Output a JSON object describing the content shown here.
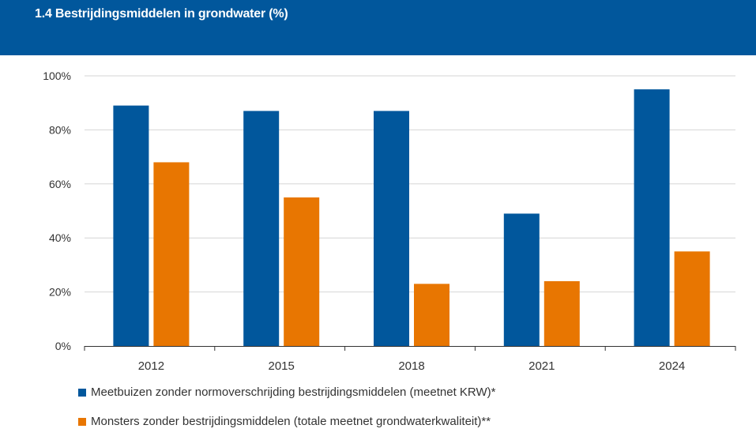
{
  "header": {
    "title": "1.4 Bestrijdingsmiddelen in grondwater (%)"
  },
  "colors": {
    "header_bg": "#01579c",
    "series_1": "#01579c",
    "series_2": "#e87601",
    "grid": "#d6d6d6",
    "axis_text": "#333333"
  },
  "chart_data": {
    "type": "bar",
    "title": "1.4 Bestrijdingsmiddelen in grondwater (%)",
    "categories": [
      "2012",
      "2015",
      "2018",
      "2021",
      "2024"
    ],
    "series": [
      {
        "name": "Meetbuizen zonder normoverschrijding bestrijdingsmiddelen (meetnet KRW)*",
        "values": [
          89,
          87,
          87,
          49,
          95
        ]
      },
      {
        "name": "Monsters zonder bestrijdingsmiddelen (totale meetnet grondwaterkwaliteit)**",
        "values": [
          68,
          55,
          23,
          24,
          35
        ]
      }
    ],
    "ylim": [
      0,
      100
    ],
    "yticks": [
      "0%",
      "20%",
      "40%",
      "60%",
      "80%",
      "100%"
    ],
    "grid": true,
    "legend_position": "bottom-left"
  }
}
